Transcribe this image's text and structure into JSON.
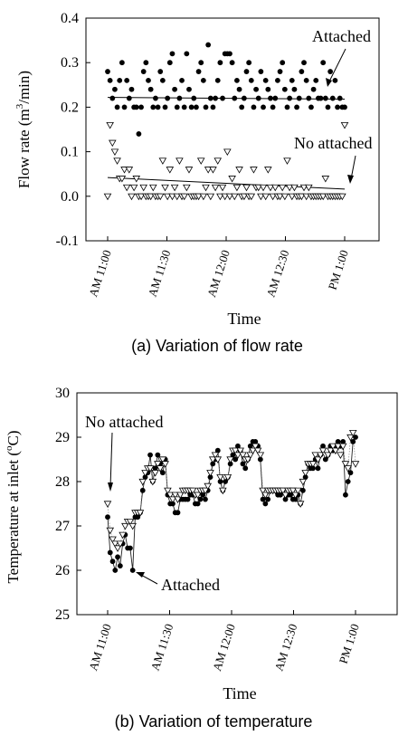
{
  "chart_data": [
    {
      "type": "scatter",
      "caption": "(a)  Variation of flow rate",
      "ylabel_pre": "Flow rate (m",
      "ylabel_sup": "3",
      "ylabel_post": "/min)",
      "xlabel": "Time",
      "ylim": [
        -0.1,
        0.4
      ],
      "yticks": [
        "-0.1",
        "0.0",
        "0.1",
        "0.2",
        "0.3",
        "0.4"
      ],
      "xticks": [
        {
          "label": "AM 11:00",
          "t": 0
        },
        {
          "label": "AM 11:30",
          "t": 30
        },
        {
          "label": "AM 12:00",
          "t": 60
        },
        {
          "label": "AM 12:30",
          "t": 90
        },
        {
          "label": "PM 1:00",
          "t": 120
        }
      ],
      "series": [
        {
          "name": "Attached",
          "marker": "filled-circle",
          "values": [
            0.28,
            0.26,
            0.22,
            0.24,
            0.2,
            0.26,
            0.3,
            0.2,
            0.26,
            0.22,
            0.24,
            0.2,
            0.2,
            0.14,
            0.2,
            0.28,
            0.3,
            0.26,
            0.24,
            0.2,
            0.22,
            0.2,
            0.28,
            0.26,
            0.2,
            0.22,
            0.3,
            0.32,
            0.24,
            0.2,
            0.22,
            0.26,
            0.2,
            0.32,
            0.24,
            0.2,
            0.22,
            0.2,
            0.28,
            0.3,
            0.26,
            0.2,
            0.34,
            0.22,
            0.2,
            0.22,
            0.26,
            0.3,
            0.22,
            0.32,
            0.32,
            0.32,
            0.3,
            0.22,
            0.26,
            0.24,
            0.2,
            0.22,
            0.28,
            0.3,
            0.26,
            0.2,
            0.24,
            0.22,
            0.28,
            0.2,
            0.26,
            0.24,
            0.22,
            0.2,
            0.22,
            0.26,
            0.28,
            0.3,
            0.24,
            0.2,
            0.22,
            0.26,
            0.24,
            0.2,
            0.22,
            0.28,
            0.3,
            0.26,
            0.22,
            0.2,
            0.24,
            0.26,
            0.22,
            0.22,
            0.3,
            0.22,
            0.2,
            0.28,
            0.22,
            0.26,
            0.2,
            0.22,
            0.2,
            0.2
          ],
          "trend": [
            0.222,
            0.218
          ]
        },
        {
          "name": "No attached",
          "marker": "open-triangle-down",
          "values": [
            0.0,
            0.16,
            0.12,
            0.1,
            0.08,
            0.04,
            0.04,
            0.06,
            0.02,
            0.06,
            0.0,
            0.02,
            0.04,
            0.0,
            0.0,
            0.02,
            0.0,
            0.0,
            0.0,
            0.02,
            0.0,
            0.0,
            0.0,
            0.08,
            0.02,
            0.0,
            0.06,
            0.0,
            0.02,
            0.0,
            0.08,
            0.0,
            0.0,
            0.02,
            0.06,
            0.0,
            0.0,
            0.0,
            0.0,
            0.08,
            0.0,
            0.02,
            0.06,
            0.0,
            0.06,
            0.02,
            0.08,
            0.0,
            0.02,
            0.0,
            0.1,
            0.0,
            0.04,
            0.0,
            0.02,
            0.06,
            0.0,
            0.0,
            0.02,
            0.0,
            0.0,
            0.06,
            0.02,
            0.02,
            0.0,
            0.02,
            0.0,
            0.06,
            0.02,
            0.0,
            0.02,
            0.0,
            0.0,
            0.02,
            0.0,
            0.08,
            0.02,
            0.0,
            0.02,
            0.0,
            0.0,
            0.0,
            0.02,
            0.0,
            0.02,
            0.0,
            0.0,
            0.0,
            0.0,
            0.0,
            0.0,
            0.04,
            0.0,
            0.0,
            0.0,
            0.0,
            0.0,
            0.0,
            0.0,
            0.16
          ],
          "trend": [
            0.042,
            0.016
          ]
        }
      ],
      "annotations": [
        {
          "text": "Attached",
          "target_series": 0
        },
        {
          "text": "No attached",
          "target_series": 1
        }
      ],
      "grid": false
    },
    {
      "type": "scatter",
      "caption": "(b)  Variation of temperature",
      "ylabel_pre": "Temperature at inlet (",
      "ylabel_sup": "o",
      "ylabel_post": "C)",
      "xlabel": "Time",
      "ylim": [
        25,
        30
      ],
      "yticks": [
        "25",
        "26",
        "27",
        "28",
        "29",
        "30"
      ],
      "xticks": [
        {
          "label": "AM 11:00",
          "t": 0
        },
        {
          "label": "AM 11:30",
          "t": 30
        },
        {
          "label": "AM 12:00",
          "t": 60
        },
        {
          "label": "AM 12:30",
          "t": 90
        },
        {
          "label": "PM 1:00",
          "t": 120
        }
      ],
      "series": [
        {
          "name": "Attached",
          "marker": "filled-circle",
          "values": [
            27.2,
            26.4,
            26.2,
            26.0,
            26.3,
            26.1,
            26.6,
            26.8,
            26.5,
            26.5,
            26.0,
            27.2,
            27.2,
            27.3,
            27.8,
            28.1,
            28.2,
            28.6,
            28.0,
            28.3,
            28.6,
            28.4,
            28.2,
            28.5,
            27.7,
            27.5,
            27.5,
            27.3,
            27.3,
            27.6,
            27.6,
            27.6,
            27.6,
            27.7,
            27.7,
            27.5,
            27.5,
            27.6,
            27.7,
            27.6,
            27.8,
            28.1,
            28.4,
            28.5,
            28.7,
            28.0,
            27.8,
            28.0,
            28.1,
            28.4,
            28.6,
            28.5,
            28.8,
            28.7,
            28.4,
            28.3,
            28.5,
            28.8,
            28.9,
            28.9,
            28.8,
            28.5,
            27.6,
            27.5,
            27.6,
            27.8,
            27.8,
            27.8,
            27.7,
            27.7,
            27.8,
            27.6,
            27.7,
            27.7,
            27.6,
            27.6,
            27.7,
            27.5,
            27.8,
            28.1,
            28.4,
            28.3,
            28.3,
            28.5,
            28.3,
            28.6,
            28.8,
            28.5,
            28.6,
            28.8,
            28.7,
            28.8,
            28.9,
            28.8,
            28.9,
            27.7,
            28.0,
            28.2,
            28.9,
            29.0
          ],
          "trend": null
        },
        {
          "name": "No attached",
          "marker": "open-triangle-down",
          "values": [
            27.5,
            26.9,
            26.7,
            26.6,
            26.5,
            26.6,
            26.8,
            27.0,
            27.1,
            27.1,
            27.0,
            27.3,
            27.3,
            27.3,
            28.0,
            28.2,
            28.3,
            28.3,
            28.0,
            28.2,
            28.4,
            28.3,
            28.5,
            28.4,
            27.8,
            27.7,
            27.6,
            27.7,
            27.6,
            27.7,
            27.8,
            27.8,
            27.8,
            27.8,
            27.8,
            27.7,
            27.7,
            27.8,
            27.8,
            27.8,
            27.9,
            28.2,
            28.5,
            28.6,
            28.5,
            28.1,
            27.8,
            28.1,
            28.1,
            28.5,
            28.7,
            28.7,
            28.6,
            28.7,
            28.6,
            28.5,
            28.5,
            28.6,
            28.7,
            28.8,
            28.7,
            28.6,
            27.8,
            27.7,
            27.8,
            27.8,
            27.8,
            27.8,
            27.8,
            27.8,
            27.8,
            27.7,
            27.8,
            27.8,
            27.8,
            27.7,
            27.8,
            27.5,
            28.0,
            28.2,
            28.4,
            28.4,
            28.4,
            28.6,
            28.5,
            28.6,
            28.7,
            28.6,
            28.6,
            28.7,
            28.8,
            28.7,
            28.8,
            28.6,
            28.8,
            28.4,
            28.3,
            29.0,
            29.1,
            28.4
          ],
          "trend": null
        }
      ],
      "annotations": [
        {
          "text": "No attached",
          "target_series": 1
        },
        {
          "text": "Attached",
          "target_series": 0
        }
      ],
      "grid": false
    }
  ]
}
